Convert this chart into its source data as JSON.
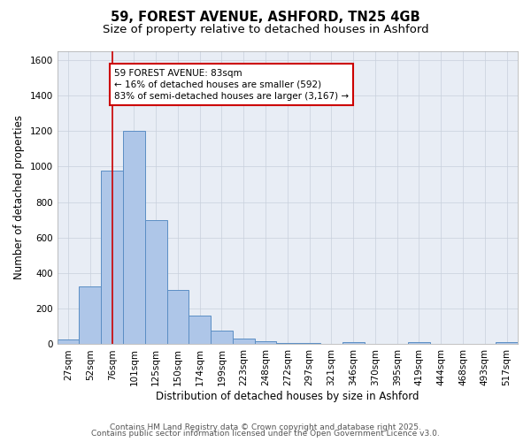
{
  "title_line1": "59, FOREST AVENUE, ASHFORD, TN25 4GB",
  "title_line2": "Size of property relative to detached houses in Ashford",
  "xlabel": "Distribution of detached houses by size in Ashford",
  "ylabel": "Number of detached properties",
  "categories": [
    "27sqm",
    "52sqm",
    "76sqm",
    "101sqm",
    "125sqm",
    "150sqm",
    "174sqm",
    "199sqm",
    "223sqm",
    "248sqm",
    "272sqm",
    "297sqm",
    "321sqm",
    "346sqm",
    "370sqm",
    "395sqm",
    "419sqm",
    "444sqm",
    "468sqm",
    "493sqm",
    "517sqm"
  ],
  "values": [
    25,
    325,
    975,
    1200,
    700,
    305,
    160,
    75,
    30,
    15,
    8,
    5,
    0,
    10,
    0,
    0,
    10,
    0,
    0,
    0,
    10
  ],
  "bar_color": "#aec6e8",
  "bar_edge_color": "#5b8ec4",
  "red_line_x": 2,
  "red_line_color": "#cc0000",
  "annotation_text": "59 FOREST AVENUE: 83sqm\n← 16% of detached houses are smaller (592)\n83% of semi-detached houses are larger (3,167) →",
  "annotation_box_color": "#ffffff",
  "annotation_box_edge": "#cc0000",
  "ylim": [
    0,
    1650
  ],
  "yticks": [
    0,
    200,
    400,
    600,
    800,
    1000,
    1200,
    1400,
    1600
  ],
  "grid_color": "#c8d0dc",
  "bg_color": "#e8edf5",
  "footer_line1": "Contains HM Land Registry data © Crown copyright and database right 2025.",
  "footer_line2": "Contains public sector information licensed under the Open Government Licence v3.0.",
  "title_fontsize": 10.5,
  "subtitle_fontsize": 9.5,
  "axis_label_fontsize": 8.5,
  "tick_fontsize": 7.5,
  "annotation_fontsize": 7.5,
  "footer_fontsize": 6.5
}
